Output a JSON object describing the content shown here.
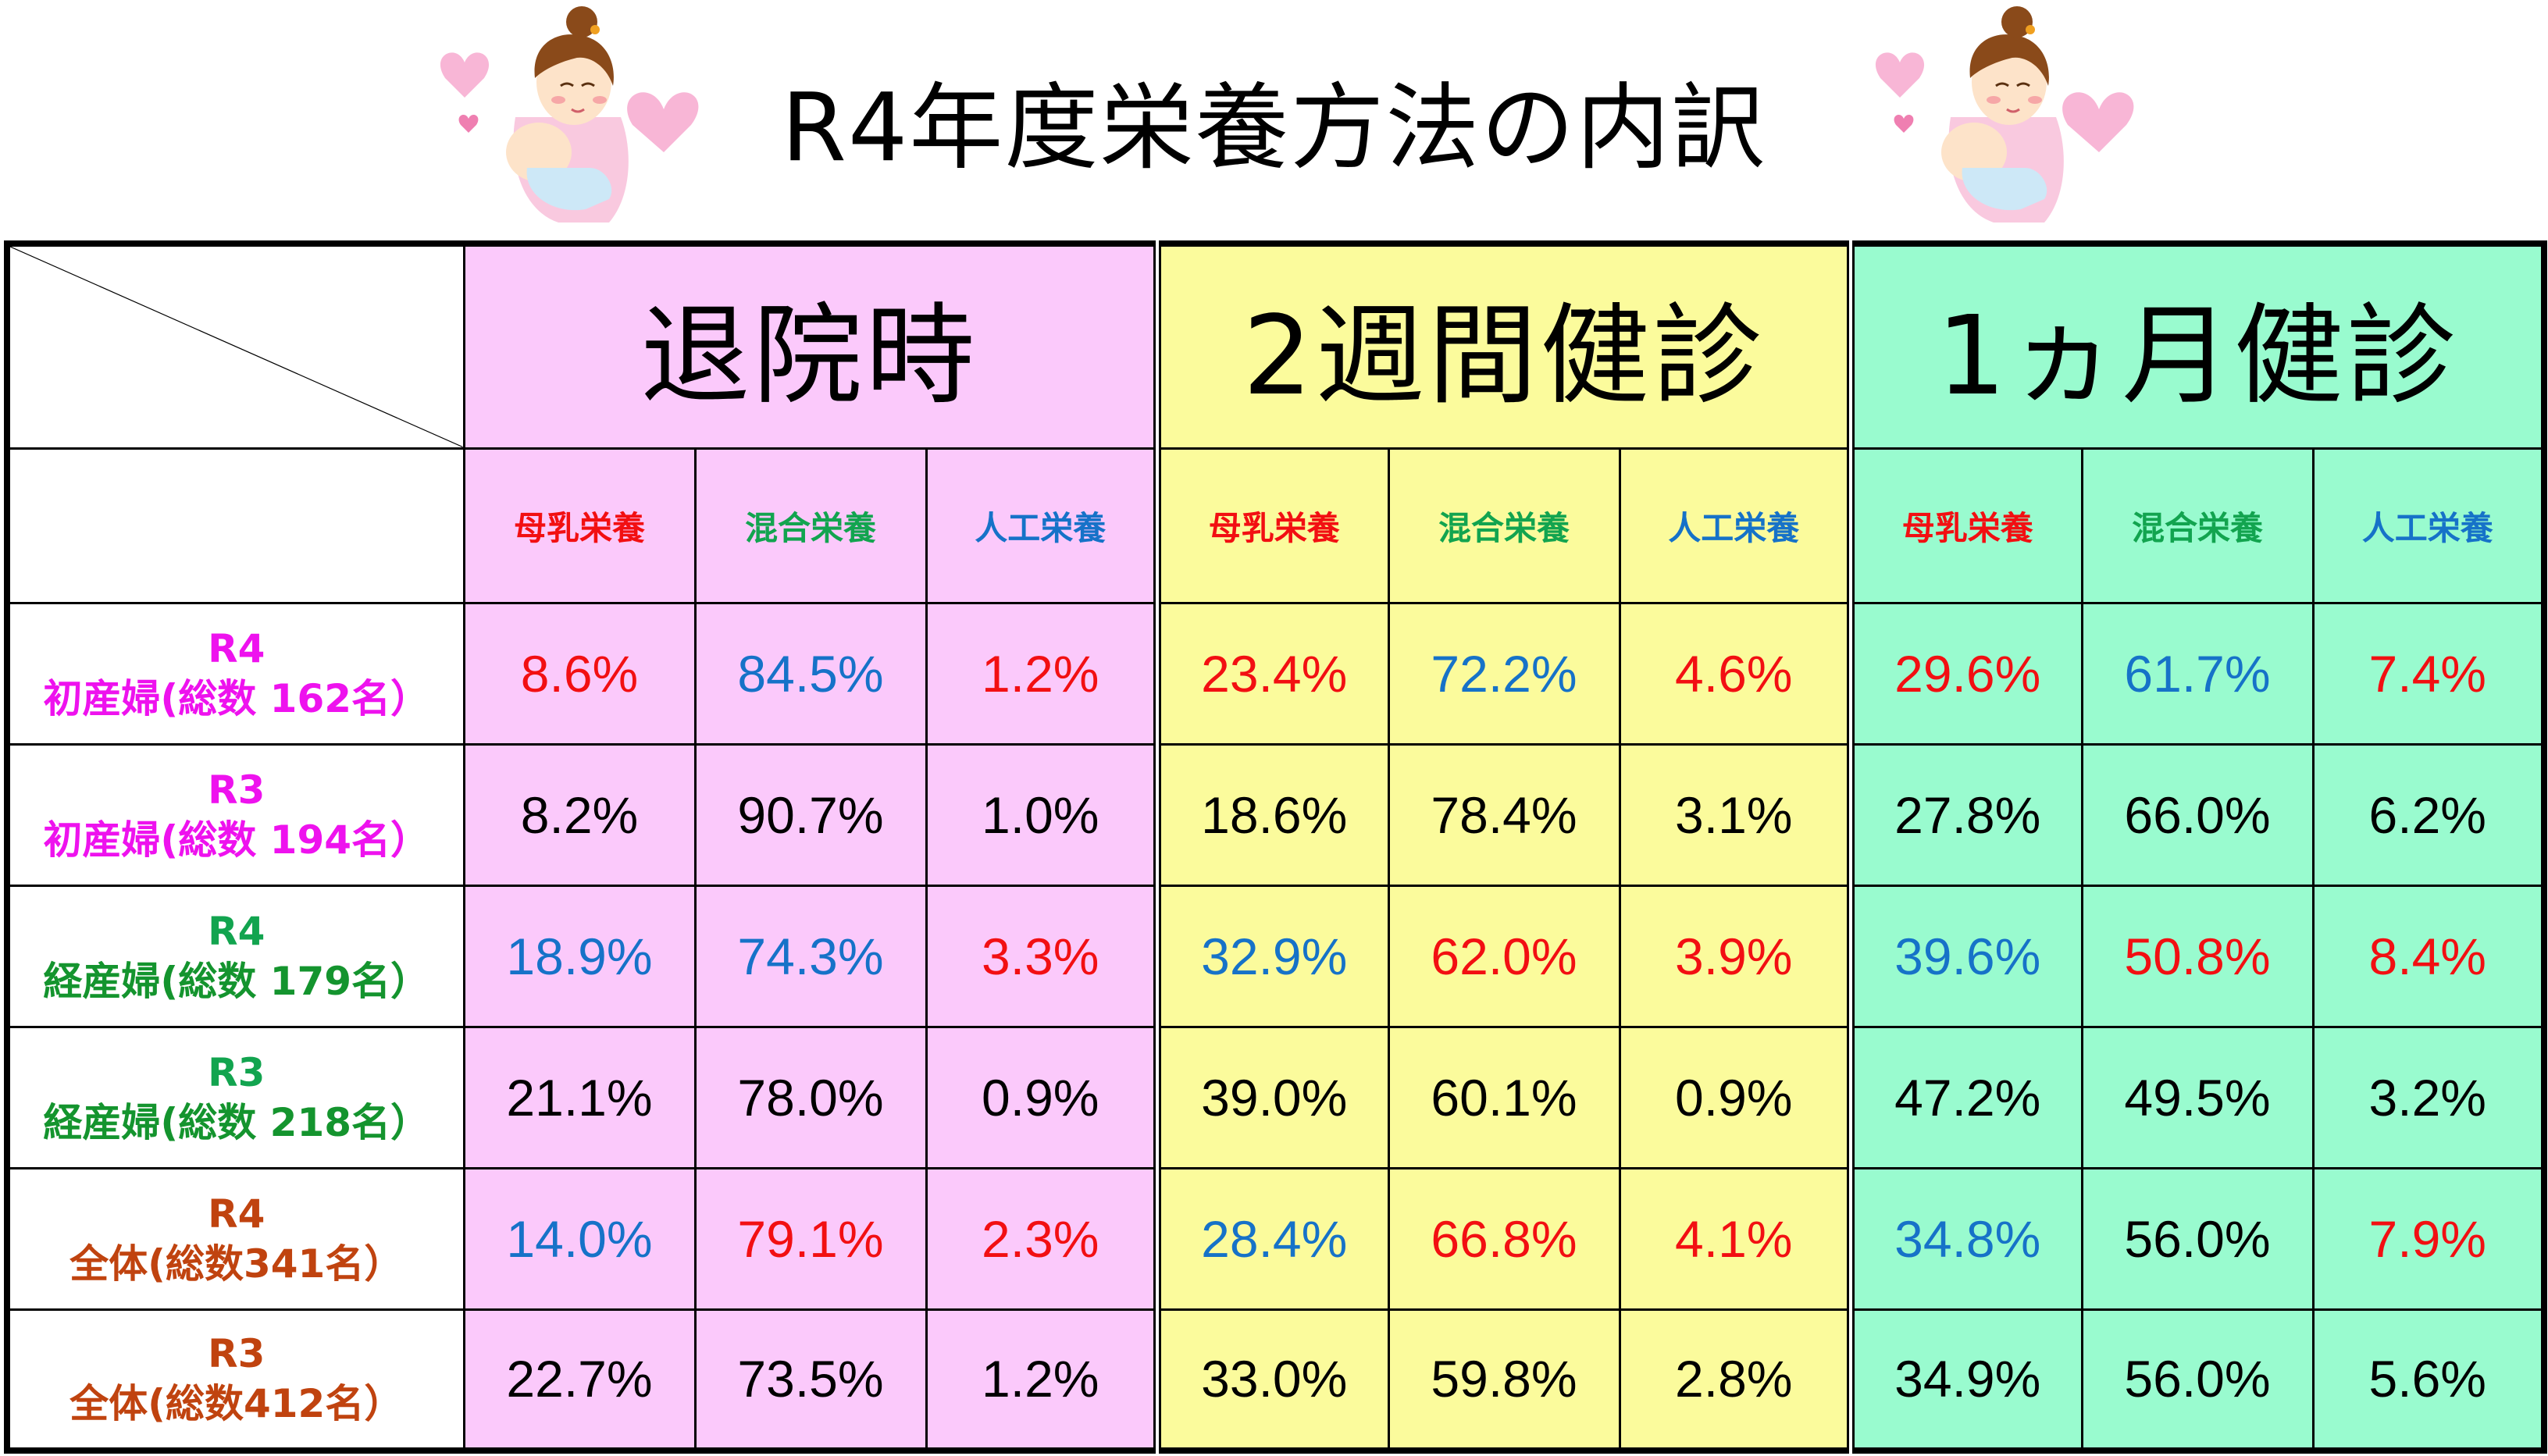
{
  "title": "R4年度栄養方法の内訳",
  "colors": {
    "pink_bg": "#fbc9fb",
    "yellow_bg": "#fbfb9c",
    "green_bg": "#99fbcf",
    "red": "#f20f12",
    "blue": "#1672c8",
    "green": "#12a44f",
    "magenta": "#ee12ee",
    "brown": "#c0430f",
    "dark_green": "#14942e"
  },
  "illustrations": [
    "mother-breastfeeding-illustration",
    "hearts-icon"
  ],
  "periods": [
    "退院時",
    "2週間健診",
    "1ヵ月健診"
  ],
  "methods": [
    "母乳栄養",
    "混合栄養",
    "人工栄養"
  ],
  "rows": [
    {
      "year": "R4",
      "group": "初産婦(総数 162名）",
      "values": [
        "8.6%",
        "84.5%",
        "1.2%",
        "23.4%",
        "72.2%",
        "4.6%",
        "29.6%",
        "61.7%",
        "7.4%"
      ]
    },
    {
      "year": "R3",
      "group": "初産婦(総数 194名）",
      "values": [
        "8.2%",
        "90.7%",
        "1.0%",
        "18.6%",
        "78.4%",
        "3.1%",
        "27.8%",
        "66.0%",
        "6.2%"
      ]
    },
    {
      "year": "R4",
      "group": "経産婦(総数 179名）",
      "values": [
        "18.9%",
        "74.3%",
        "3.3%",
        "32.9%",
        "62.0%",
        "3.9%",
        "39.6%",
        "50.8%",
        "8.4%"
      ]
    },
    {
      "year": "R3",
      "group": "経産婦(総数 218名）",
      "values": [
        "21.1%",
        "78.0%",
        "0.9%",
        "39.0%",
        "60.1%",
        "0.9%",
        "47.2%",
        "49.5%",
        "3.2%"
      ]
    },
    {
      "year": "R4",
      "group": "全体(総数341名）",
      "values": [
        "14.0%",
        "79.1%",
        "2.3%",
        "28.4%",
        "66.8%",
        "4.1%",
        "34.8%",
        "56.0%",
        "7.9%"
      ]
    },
    {
      "year": "R3",
      "group": "全体(総数412名）",
      "values": [
        "22.7%",
        "73.5%",
        "1.2%",
        "33.0%",
        "59.8%",
        "2.8%",
        "34.9%",
        "56.0%",
        "5.6%"
      ]
    }
  ]
}
